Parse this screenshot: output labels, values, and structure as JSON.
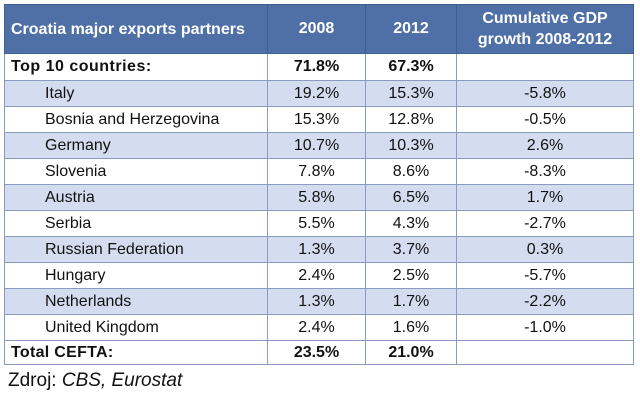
{
  "header": {
    "col_partners": "Croatia major exports partners",
    "col_2008": "2008",
    "col_2012": "2012",
    "col_gdp": "Cumulative GDP growth 2008-2012"
  },
  "top10": {
    "label": "Top 10 countries:",
    "y2008": "71.8%",
    "y2012": "67.3%",
    "gdp": ""
  },
  "countries": [
    {
      "name": "Italy",
      "y2008": "19.2%",
      "y2012": "15.3%",
      "gdp": "-5.8%"
    },
    {
      "name": "Bosnia and Herzegovina",
      "y2008": "15.3%",
      "y2012": "12.8%",
      "gdp": "-0.5%"
    },
    {
      "name": "Germany",
      "y2008": "10.7%",
      "y2012": "10.3%",
      "gdp": "2.6%"
    },
    {
      "name": "Slovenia",
      "y2008": "7.8%",
      "y2012": "8.6%",
      "gdp": "-8.3%"
    },
    {
      "name": "Austria",
      "y2008": "5.8%",
      "y2012": "6.5%",
      "gdp": "1.7%"
    },
    {
      "name": "Serbia",
      "y2008": "5.5%",
      "y2012": "4.3%",
      "gdp": "-2.7%"
    },
    {
      "name": "Russian Federation",
      "y2008": "1.3%",
      "y2012": "3.7%",
      "gdp": "0.3%"
    },
    {
      "name": "Hungary",
      "y2008": "2.4%",
      "y2012": "2.5%",
      "gdp": "-5.7%"
    },
    {
      "name": "Netherlands",
      "y2008": "1.3%",
      "y2012": "1.7%",
      "gdp": "-2.2%"
    },
    {
      "name": "United Kingdom",
      "y2008": "2.4%",
      "y2012": "1.6%",
      "gdp": "-1.0%"
    }
  ],
  "total": {
    "label": "Total CEFTA:",
    "y2008": "23.5%",
    "y2012": "21.0%",
    "gdp": ""
  },
  "source": {
    "prefix": "Zdroj: ",
    "text": "CBS, Eurostat"
  },
  "colors": {
    "header_bg": "#4f6fa7",
    "stripe": "#d3ddef",
    "border": "#8a9bbf"
  }
}
